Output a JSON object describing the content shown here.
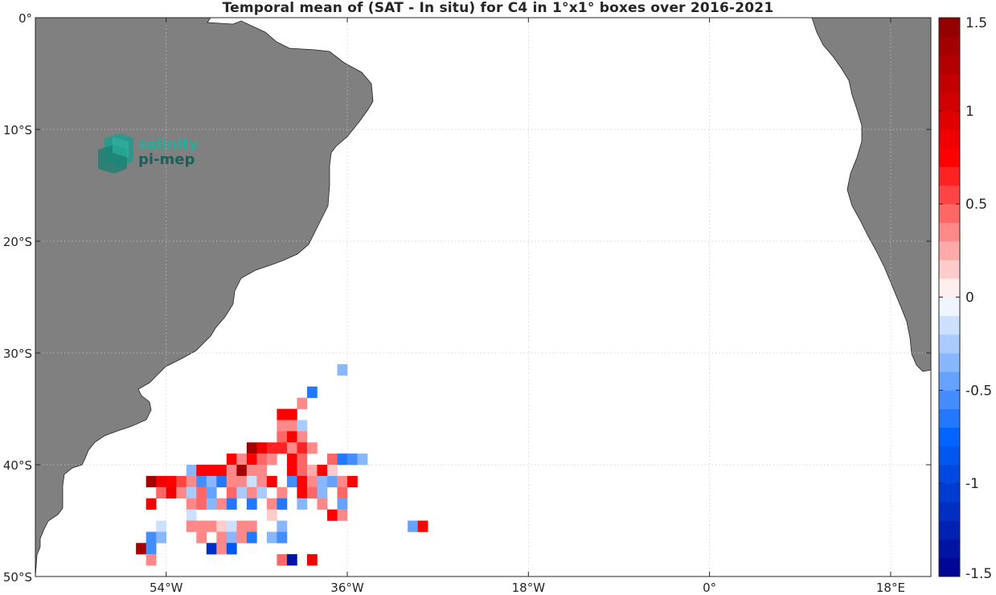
{
  "title": "Temporal mean of (SAT - In situ) for C4 in 1°x1° boxes over 2016-2021",
  "logo": {
    "line1": "salinity",
    "line2": "pi-mep",
    "color1": "#22b09a",
    "color2": "#1a5f5a"
  },
  "map": {
    "lon_range": [
      -67,
      22
    ],
    "lat_range": [
      -50,
      0
    ],
    "lon_ticks": [
      {
        "lon": -54,
        "label": "54°W"
      },
      {
        "lon": -36,
        "label": "36°W"
      },
      {
        "lon": -18,
        "label": "18°W"
      },
      {
        "lon": 0,
        "label": "0°"
      },
      {
        "lon": 18,
        "label": "18°E"
      }
    ],
    "lat_ticks": [
      {
        "lat": 0,
        "label": "0°"
      },
      {
        "lat": -10,
        "label": "10°S"
      },
      {
        "lat": -20,
        "label": "20°S"
      },
      {
        "lat": -30,
        "label": "30°S"
      },
      {
        "lat": -40,
        "label": "40°S"
      },
      {
        "lat": -50,
        "label": "50°S"
      }
    ],
    "grid": true,
    "land_color": "#808080"
  },
  "colorbar": {
    "range": [
      -1.5,
      1.5
    ],
    "n_colors": 30,
    "ticks": [
      {
        "value": 1.5,
        "label": "1.5"
      },
      {
        "value": 1,
        "label": "1"
      },
      {
        "value": 0.5,
        "label": "0.5"
      },
      {
        "value": 0,
        "label": "0"
      },
      {
        "value": -0.5,
        "label": "-0.5"
      },
      {
        "value": -1,
        "label": "-1"
      },
      {
        "value": -1.5,
        "label": "-1.5"
      }
    ],
    "colormap": "blue-white-red"
  },
  "chart_data": {
    "type": "heatmap",
    "title": "Temporal mean of (SAT - In situ) for C4 in 1°x1° boxes over 2016-2021",
    "xlabel": "",
    "ylabel": "",
    "xlim": [
      -67,
      22
    ],
    "ylim": [
      -50,
      0
    ],
    "value_range": [
      -1.5,
      1.5
    ],
    "cells": [
      {
        "lon": -36.5,
        "lat": -31.5,
        "value": -0.3
      },
      {
        "lon": -39.5,
        "lat": -33.5,
        "value": -0.7
      },
      {
        "lon": -40.5,
        "lat": -34.5,
        "value": 0.35
      },
      {
        "lon": -41.5,
        "lat": -35.5,
        "value": 0.75
      },
      {
        "lon": -42.5,
        "lat": -35.5,
        "value": 0.75
      },
      {
        "lon": -42.5,
        "lat": -36.5,
        "value": 0.3
      },
      {
        "lon": -41.5,
        "lat": -36.5,
        "value": 0.3
      },
      {
        "lon": -40.5,
        "lat": -36.5,
        "value": -0.25
      },
      {
        "lon": -42.5,
        "lat": -37.5,
        "value": 0.45
      },
      {
        "lon": -41.5,
        "lat": -37.5,
        "value": 0.75
      },
      {
        "lon": -40.5,
        "lat": -37.5,
        "value": 0.35
      },
      {
        "lon": -45.5,
        "lat": -38.5,
        "value": 1.35
      },
      {
        "lon": -44.5,
        "lat": -38.5,
        "value": 0.85
      },
      {
        "lon": -43.5,
        "lat": -38.5,
        "value": 0.6
      },
      {
        "lon": -42.5,
        "lat": -38.5,
        "value": 0.65
      },
      {
        "lon": -41.5,
        "lat": -38.5,
        "value": 0.3
      },
      {
        "lon": -40.5,
        "lat": -38.5,
        "value": 0.65
      },
      {
        "lon": -39.5,
        "lat": -38.5,
        "value": 0.3
      },
      {
        "lon": -47.5,
        "lat": -39.5,
        "value": 0.75
      },
      {
        "lon": -46.5,
        "lat": -39.5,
        "value": 0.35
      },
      {
        "lon": -45.5,
        "lat": -39.5,
        "value": 0.75
      },
      {
        "lon": -44.5,
        "lat": -39.5,
        "value": 0.45
      },
      {
        "lon": -43.5,
        "lat": -39.5,
        "value": 0.35
      },
      {
        "lon": -41.5,
        "lat": -39.5,
        "value": 0.75
      },
      {
        "lon": -40.5,
        "lat": -39.5,
        "value": 0.45
      },
      {
        "lon": -37.5,
        "lat": -39.5,
        "value": 0.45
      },
      {
        "lon": -36.5,
        "lat": -39.5,
        "value": -0.7
      },
      {
        "lon": -35.5,
        "lat": -39.5,
        "value": -0.6
      },
      {
        "lon": -34.5,
        "lat": -39.5,
        "value": -0.3
      },
      {
        "lon": -51.5,
        "lat": -40.5,
        "value": -0.4
      },
      {
        "lon": -50.5,
        "lat": -40.5,
        "value": 0.75
      },
      {
        "lon": -49.5,
        "lat": -40.5,
        "value": 0.75
      },
      {
        "lon": -48.5,
        "lat": -40.5,
        "value": 0.75
      },
      {
        "lon": -47.5,
        "lat": -40.5,
        "value": 0.3
      },
      {
        "lon": -46.5,
        "lat": -40.5,
        "value": 1.35
      },
      {
        "lon": -45.5,
        "lat": -40.5,
        "value": 0.35
      },
      {
        "lon": -44.5,
        "lat": -40.5,
        "value": 0.3
      },
      {
        "lon": -41.5,
        "lat": -40.5,
        "value": 0.75
      },
      {
        "lon": -40.5,
        "lat": -40.5,
        "value": 0.45
      },
      {
        "lon": -39.5,
        "lat": -40.5,
        "value": 0.2
      },
      {
        "lon": -38.5,
        "lat": -40.5,
        "value": 0.75
      },
      {
        "lon": -37.5,
        "lat": -40.5,
        "value": 0.15
      },
      {
        "lon": -55.5,
        "lat": -41.5,
        "value": 1.35
      },
      {
        "lon": -54.5,
        "lat": -41.5,
        "value": 0.85
      },
      {
        "lon": -53.5,
        "lat": -41.5,
        "value": 0.75
      },
      {
        "lon": -52.5,
        "lat": -41.5,
        "value": 0.5
      },
      {
        "lon": -51.5,
        "lat": -41.5,
        "value": 0.35
      },
      {
        "lon": -50.5,
        "lat": -41.5,
        "value": -0.6
      },
      {
        "lon": -49.5,
        "lat": -41.5,
        "value": -0.4
      },
      {
        "lon": -48.5,
        "lat": -41.5,
        "value": -0.7
      },
      {
        "lon": -47.5,
        "lat": -41.5,
        "value": 0.3
      },
      {
        "lon": -46.5,
        "lat": -41.5,
        "value": 0.35
      },
      {
        "lon": -45.5,
        "lat": -41.5,
        "value": -0.2
      },
      {
        "lon": -44.5,
        "lat": -41.5,
        "value": 0.3
      },
      {
        "lon": -43.5,
        "lat": -41.5,
        "value": 0.75
      },
      {
        "lon": -41.5,
        "lat": -41.5,
        "value": -0.6
      },
      {
        "lon": -40.5,
        "lat": -41.5,
        "value": 0.75
      },
      {
        "lon": -39.5,
        "lat": -41.5,
        "value": 0.35
      },
      {
        "lon": -38.5,
        "lat": -41.5,
        "value": -0.4
      },
      {
        "lon": -37.5,
        "lat": -41.5,
        "value": -0.5
      },
      {
        "lon": -36.5,
        "lat": -41.5,
        "value": 0.35
      },
      {
        "lon": -35.5,
        "lat": -41.5,
        "value": 0.75
      },
      {
        "lon": -54.5,
        "lat": -42.5,
        "value": 0.45
      },
      {
        "lon": -53.5,
        "lat": -42.5,
        "value": 0.85
      },
      {
        "lon": -52.5,
        "lat": -42.5,
        "value": 0.3
      },
      {
        "lon": -51.5,
        "lat": -42.5,
        "value": -0.25
      },
      {
        "lon": -50.5,
        "lat": -42.5,
        "value": 0.45
      },
      {
        "lon": -49.5,
        "lat": -42.5,
        "value": -0.5
      },
      {
        "lon": -47.5,
        "lat": -42.5,
        "value": 0.45
      },
      {
        "lon": -46.5,
        "lat": -42.5,
        "value": -0.25
      },
      {
        "lon": -45.5,
        "lat": -42.5,
        "value": 0.3
      },
      {
        "lon": -44.5,
        "lat": -42.5,
        "value": -0.25
      },
      {
        "lon": -42.5,
        "lat": -42.5,
        "value": 0.3
      },
      {
        "lon": -40.5,
        "lat": -42.5,
        "value": 0.75
      },
      {
        "lon": -39.5,
        "lat": -42.5,
        "value": 0.45
      },
      {
        "lon": -38.5,
        "lat": -42.5,
        "value": -0.3
      },
      {
        "lon": -36.5,
        "lat": -42.5,
        "value": 0.45
      },
      {
        "lon": -55.5,
        "lat": -43.5,
        "value": 0.85
      },
      {
        "lon": -51.5,
        "lat": -43.5,
        "value": 0.3
      },
      {
        "lon": -50.5,
        "lat": -43.5,
        "value": 0.45
      },
      {
        "lon": -49.5,
        "lat": -43.5,
        "value": -0.3
      },
      {
        "lon": -48.5,
        "lat": -43.5,
        "value": 0.3
      },
      {
        "lon": -47.5,
        "lat": -43.5,
        "value": -0.7
      },
      {
        "lon": -45.5,
        "lat": -43.5,
        "value": -0.7
      },
      {
        "lon": -43.5,
        "lat": -43.5,
        "value": 0.3
      },
      {
        "lon": -42.5,
        "lat": -43.5,
        "value": -0.7
      },
      {
        "lon": -40.5,
        "lat": -43.5,
        "value": -0.35
      },
      {
        "lon": -38.5,
        "lat": -43.5,
        "value": 0.3
      },
      {
        "lon": -36.5,
        "lat": -43.5,
        "value": -0.5
      },
      {
        "lon": -51.5,
        "lat": -44.5,
        "value": -0.15
      },
      {
        "lon": -43.5,
        "lat": -44.5,
        "value": 0.15
      },
      {
        "lon": -37.5,
        "lat": -44.5,
        "value": 0.75
      },
      {
        "lon": -36.5,
        "lat": -44.5,
        "value": 0.35
      },
      {
        "lon": -54.5,
        "lat": -45.5,
        "value": -0.2
      },
      {
        "lon": -51.5,
        "lat": -45.5,
        "value": 0.35
      },
      {
        "lon": -50.5,
        "lat": -45.5,
        "value": 0.35
      },
      {
        "lon": -49.5,
        "lat": -45.5,
        "value": 0.3
      },
      {
        "lon": -48.5,
        "lat": -45.5,
        "value": 0.15
      },
      {
        "lon": -47.5,
        "lat": -45.5,
        "value": -0.2
      },
      {
        "lon": -46.5,
        "lat": -45.5,
        "value": 0.3
      },
      {
        "lon": -45.5,
        "lat": -45.5,
        "value": 0.3
      },
      {
        "lon": -42.5,
        "lat": -45.5,
        "value": -0.3
      },
      {
        "lon": -29.5,
        "lat": -45.5,
        "value": -0.5
      },
      {
        "lon": -28.5,
        "lat": -45.5,
        "value": 0.75
      },
      {
        "lon": -55.5,
        "lat": -46.5,
        "value": -0.6
      },
      {
        "lon": -54.5,
        "lat": -46.5,
        "value": -0.35
      },
      {
        "lon": -50.5,
        "lat": -46.5,
        "value": 0.3
      },
      {
        "lon": -48.5,
        "lat": -46.5,
        "value": 0.3
      },
      {
        "lon": -47.5,
        "lat": -46.5,
        "value": -0.3
      },
      {
        "lon": -46.5,
        "lat": -46.5,
        "value": 0.3
      },
      {
        "lon": -45.5,
        "lat": -46.5,
        "value": -0.7
      },
      {
        "lon": -43.5,
        "lat": -46.5,
        "value": -0.4
      },
      {
        "lon": -42.5,
        "lat": -46.5,
        "value": -0.6
      },
      {
        "lon": -56.5,
        "lat": -47.5,
        "value": 1.35
      },
      {
        "lon": -55.5,
        "lat": -47.5,
        "value": -0.6
      },
      {
        "lon": -49.5,
        "lat": -47.5,
        "value": -1.1
      },
      {
        "lon": -48.5,
        "lat": -47.5,
        "value": 0.3
      },
      {
        "lon": -47.5,
        "lat": -47.5,
        "value": -0.8
      },
      {
        "lon": -55.5,
        "lat": -48.5,
        "value": 0.35
      },
      {
        "lon": -42.5,
        "lat": -48.5,
        "value": 0.45
      },
      {
        "lon": -41.5,
        "lat": -48.5,
        "value": -1.3
      },
      {
        "lon": -39.5,
        "lat": -48.5,
        "value": 0.85
      }
    ]
  }
}
